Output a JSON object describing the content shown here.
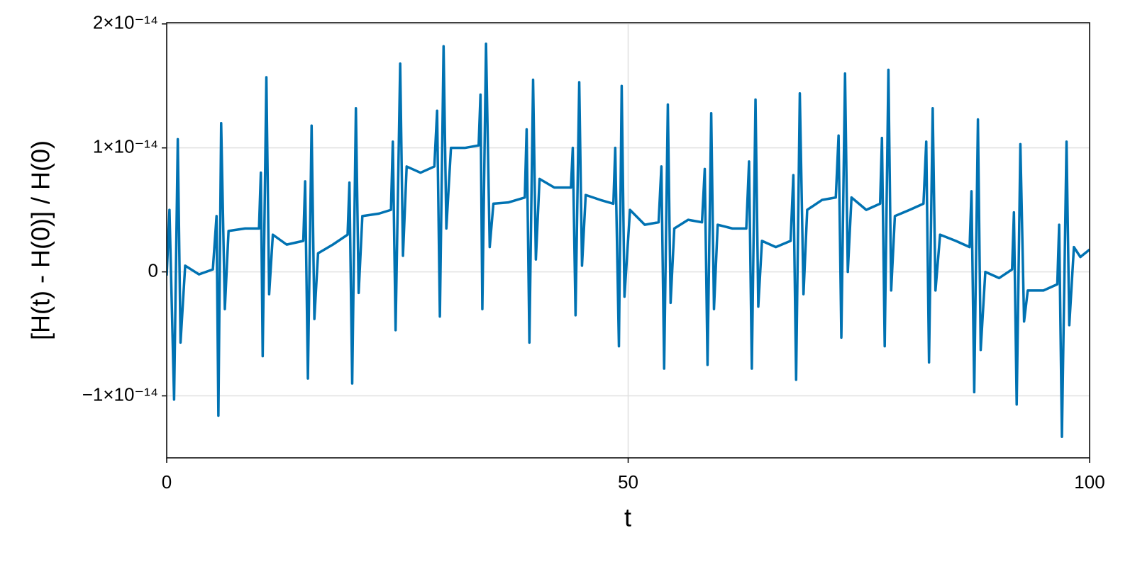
{
  "chart_data": {
    "type": "line",
    "xlabel": "t",
    "ylabel": "[H(t) - H(0)] / H(0)",
    "color": "#0072b2",
    "grid": true,
    "xlim": [
      0,
      100
    ],
    "xticks": [
      0,
      50,
      100
    ],
    "ylim": [
      -1.5e-14,
      2.01e-14
    ],
    "yticks": [
      {
        "value": -1e-14,
        "label": "−1×10⁻¹⁴"
      },
      0,
      {
        "value": 1e-14,
        "label": "1×10⁻¹⁴"
      },
      {
        "value": 2e-14,
        "label": "2×10⁻¹⁴"
      }
    ],
    "x": [
      0,
      0.3,
      0.8,
      1.2,
      1.5,
      2,
      3.5,
      5,
      5.4,
      5.6,
      5.9,
      6.3,
      6.7,
      8.5,
      10,
      10.2,
      10.4,
      10.8,
      11.1,
      11.5,
      13,
      14.8,
      15,
      15.3,
      15.7,
      16,
      16.4,
      18,
      19.6,
      19.8,
      20.1,
      20.5,
      20.8,
      21.2,
      23,
      24.3,
      24.5,
      24.8,
      25.3,
      25.6,
      26,
      27.5,
      29,
      29.3,
      29.6,
      30,
      30.3,
      30.8,
      32.3,
      33.8,
      34,
      34.2,
      34.6,
      35,
      35.4,
      37,
      38.8,
      39,
      39.3,
      39.7,
      40,
      40.4,
      42,
      43.8,
      44,
      44.3,
      44.7,
      45,
      45.4,
      47,
      48.4,
      48.6,
      49,
      49.3,
      49.6,
      50.2,
      51.8,
      53.3,
      53.6,
      53.9,
      54.3,
      54.6,
      55,
      56.5,
      58,
      58.3,
      58.6,
      59,
      59.3,
      59.7,
      61.3,
      62.8,
      63.1,
      63.4,
      63.8,
      64.1,
      64.5,
      66,
      67.6,
      67.9,
      68.2,
      68.6,
      69,
      69.4,
      71,
      72.5,
      72.8,
      73.1,
      73.5,
      73.8,
      74.2,
      75.8,
      77.3,
      77.5,
      77.8,
      78.2,
      78.5,
      78.9,
      80.5,
      82,
      82.3,
      82.6,
      83,
      83.3,
      83.8,
      85.5,
      87,
      87.2,
      87.5,
      87.9,
      88.2,
      88.7,
      90.2,
      91.6,
      91.8,
      92.1,
      92.5,
      92.9,
      93.3,
      95,
      96.5,
      96.7,
      97,
      97.5,
      97.8,
      98.3,
      99,
      100
    ],
    "values": [
      -3e-16,
      5e-15,
      -1.03e-14,
      1.07e-14,
      -5.7e-15,
      5e-16,
      -2e-16,
      2e-16,
      4.5e-15,
      -1.16e-14,
      1.2e-14,
      -3e-15,
      3.3e-15,
      3.5e-15,
      3.5e-15,
      8e-15,
      -6.8e-15,
      1.57e-14,
      -1.8e-15,
      3e-15,
      2.2e-15,
      2.5e-15,
      7.3e-15,
      -8.6e-15,
      1.18e-14,
      -3.8e-15,
      1.5e-15,
      2.2e-15,
      3e-15,
      7.2e-15,
      -9e-15,
      1.32e-14,
      -1.7e-15,
      4.5e-15,
      4.7e-15,
      5e-15,
      1.05e-14,
      -4.7e-15,
      1.68e-14,
      1.3e-15,
      8.5e-15,
      8e-15,
      8.5e-15,
      1.3e-14,
      -3.6e-15,
      1.82e-14,
      3.5e-15,
      1e-14,
      1e-14,
      1.02e-14,
      1.43e-14,
      -3e-15,
      1.84e-14,
      2e-15,
      5.5e-15,
      5.6e-15,
      6e-15,
      1.15e-14,
      -5.7e-15,
      1.55e-14,
      1e-15,
      7.5e-15,
      6.8e-15,
      6.8e-15,
      1e-14,
      -3.5e-15,
      1.53e-14,
      5e-16,
      6.2e-15,
      5.8e-15,
      5.5e-15,
      1e-14,
      -6e-15,
      1.5e-14,
      -2e-15,
      5e-15,
      3.8e-15,
      4e-15,
      8.5e-15,
      -7.8e-15,
      1.35e-14,
      -2.5e-15,
      3.5e-15,
      4.2e-15,
      4e-15,
      8.3e-15,
      -7.5e-15,
      1.28e-14,
      -3e-15,
      3.8e-15,
      3.5e-15,
      3.5e-15,
      8.9e-15,
      -7.8e-15,
      1.39e-14,
      -2.8e-15,
      2.5e-15,
      2e-15,
      2.5e-15,
      7.8e-15,
      -8.7e-15,
      1.44e-14,
      -1.8e-15,
      5e-15,
      5.8e-15,
      6e-15,
      1.1e-14,
      -5.3e-15,
      1.6e-14,
      0,
      6e-15,
      5e-15,
      5.5e-15,
      1.08e-14,
      -6e-15,
      1.63e-14,
      -1.5e-15,
      4.5e-15,
      5e-15,
      5.5e-15,
      1.05e-14,
      -7.3e-15,
      1.32e-14,
      -1.5e-15,
      3e-15,
      2.5e-15,
      2e-15,
      6.5e-15,
      -9.7e-15,
      1.23e-14,
      -6.3e-15,
      0,
      -5e-16,
      2e-16,
      4.8e-15,
      -1.07e-14,
      1.03e-14,
      -4e-15,
      -1.5e-15,
      -1.5e-15,
      -1e-15,
      3.8e-15,
      -1.33e-14,
      1.05e-14,
      -4.3e-15,
      2e-15,
      1.2e-15,
      1.8e-15
    ]
  }
}
